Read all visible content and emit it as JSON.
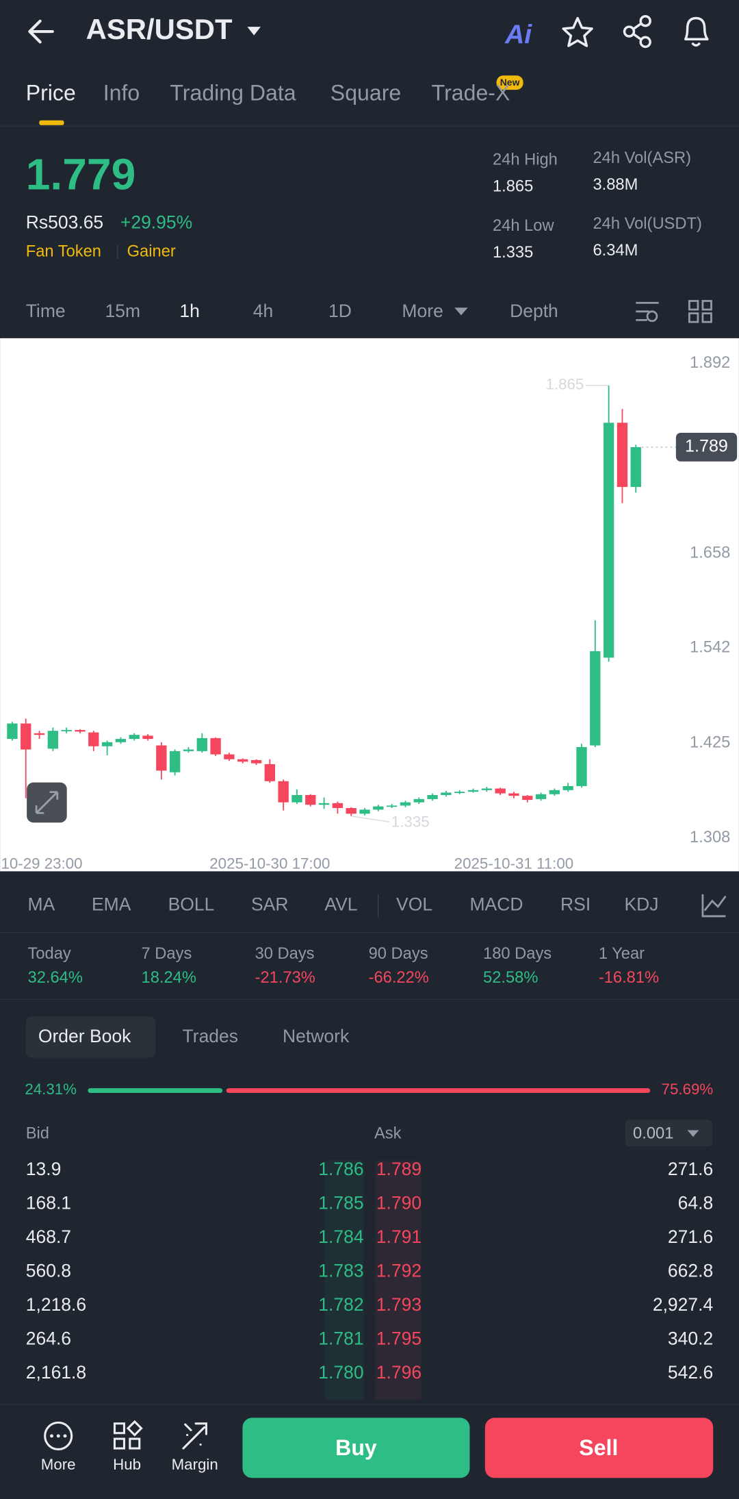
{
  "header": {
    "pair": "ASR/USDT",
    "ai_label": "Ai"
  },
  "tabs": [
    "Price",
    "Info",
    "Trading Data",
    "Square",
    "Trade-X"
  ],
  "new_badge": "New",
  "ticker": {
    "price": "1.779",
    "fiat": "Rs503.65",
    "change": "+29.95%",
    "tags": [
      "Fan Token",
      "Gainer"
    ],
    "stats": [
      {
        "label": "24h High",
        "value": "1.865"
      },
      {
        "label": "24h Vol(ASR)",
        "value": "3.88M"
      },
      {
        "label": "24h Low",
        "value": "1.335"
      },
      {
        "label": "24h Vol(USDT)",
        "value": "6.34M"
      }
    ]
  },
  "intervals": [
    "Time",
    "15m",
    "1h",
    "4h",
    "1D",
    "More",
    "Depth"
  ],
  "chart_data": {
    "type": "candlestick",
    "categories": [
      null,
      "10-29 23:00",
      null,
      null,
      null,
      null,
      null,
      null,
      null,
      null,
      null,
      null,
      null,
      null,
      null,
      null,
      null,
      null,
      null,
      "2025-10-30 17:00",
      null,
      null,
      null,
      null,
      null,
      null,
      null,
      null,
      null,
      null,
      null,
      null,
      null,
      null,
      null,
      null,
      null,
      "2025-10-31 11:00",
      null,
      null,
      null,
      null,
      null,
      null,
      null,
      null,
      null
    ],
    "open": [
      1.43,
      1.449,
      1.437,
      1.418,
      1.44,
      1.441,
      1.438,
      1.421,
      1.426,
      1.43,
      1.434,
      1.422,
      1.389,
      1.415,
      1.415,
      1.431,
      1.411,
      1.405,
      1.404,
      1.399,
      1.378,
      1.352,
      1.361,
      1.349,
      1.351,
      1.345,
      1.338,
      1.343,
      1.347,
      1.348,
      1.352,
      1.356,
      1.361,
      1.364,
      1.365,
      1.367,
      1.369,
      1.363,
      1.36,
      1.356,
      1.362,
      1.367,
      1.372,
      1.422,
      1.53,
      1.819,
      1.74
    ],
    "high": [
      1.451,
      1.455,
      1.44,
      1.444,
      1.444,
      1.442,
      1.44,
      1.428,
      1.432,
      1.437,
      1.436,
      1.426,
      1.417,
      1.42,
      1.437,
      1.432,
      1.413,
      1.406,
      1.405,
      1.405,
      1.38,
      1.368,
      1.362,
      1.358,
      1.353,
      1.346,
      1.345,
      1.349,
      1.35,
      1.354,
      1.358,
      1.363,
      1.366,
      1.367,
      1.369,
      1.371,
      1.37,
      1.365,
      1.361,
      1.364,
      1.369,
      1.376,
      1.424,
      1.576,
      1.865,
      1.836,
      1.792
    ],
    "low": [
      1.428,
      1.357,
      1.43,
      1.415,
      1.437,
      1.437,
      1.415,
      1.41,
      1.424,
      1.428,
      1.428,
      1.38,
      1.385,
      1.413,
      1.413,
      1.409,
      1.403,
      1.4,
      1.398,
      1.376,
      1.342,
      1.35,
      1.347,
      1.344,
      1.338,
      1.335,
      1.336,
      1.341,
      1.345,
      1.346,
      1.35,
      1.354,
      1.359,
      1.362,
      1.364,
      1.365,
      1.361,
      1.357,
      1.352,
      1.354,
      1.36,
      1.365,
      1.37,
      1.42,
      1.525,
      1.72,
      1.733
    ],
    "close": [
      1.449,
      1.417,
      1.435,
      1.44,
      1.441,
      1.439,
      1.421,
      1.426,
      1.43,
      1.435,
      1.43,
      1.391,
      1.415,
      1.417,
      1.431,
      1.411,
      1.405,
      1.402,
      1.4,
      1.378,
      1.352,
      1.361,
      1.349,
      1.351,
      1.345,
      1.338,
      1.343,
      1.347,
      1.348,
      1.352,
      1.356,
      1.361,
      1.364,
      1.365,
      1.367,
      1.369,
      1.363,
      1.36,
      1.355,
      1.362,
      1.367,
      1.372,
      1.42,
      1.538,
      1.819,
      1.74,
      1.789
    ],
    "up_color": "#2ebd85",
    "down_color": "#f6465d",
    "ylim": [
      1.293,
      1.923
    ],
    "yticks": [
      1.308,
      1.425,
      1.542,
      1.658,
      1.892
    ],
    "last_price": 1.789,
    "high_marker": 1.865,
    "low_marker": 1.335
  },
  "indicators": [
    "MA",
    "EMA",
    "BOLL",
    "SAR",
    "AVL",
    "VOL",
    "MACD",
    "RSI",
    "KDJ"
  ],
  "performance": [
    {
      "label": "Today",
      "value": "32.64%"
    },
    {
      "label": "7 Days",
      "value": "18.24%"
    },
    {
      "label": "30 Days",
      "value": "-21.73%"
    },
    {
      "label": "90 Days",
      "value": "-66.22%"
    },
    {
      "label": "180 Days",
      "value": "52.58%"
    },
    {
      "label": "1 Year",
      "value": "-16.81%"
    }
  ],
  "order_book": {
    "tabs": [
      "Order Book",
      "Trades",
      "Network"
    ],
    "bid_ratio": "24.31%",
    "ask_ratio": "75.69%",
    "bid_label": "Bid",
    "ask_label": "Ask",
    "precision": "0.001",
    "rows": [
      [
        "13.9",
        "1.786",
        "1.789",
        "271.6"
      ],
      [
        "168.1",
        "1.785",
        "1.790",
        "64.8"
      ],
      [
        "468.7",
        "1.784",
        "1.791",
        "271.6"
      ],
      [
        "560.8",
        "1.783",
        "1.792",
        "662.8"
      ],
      [
        "1,218.6",
        "1.782",
        "1.793",
        "2,927.4"
      ],
      [
        "264.6",
        "1.781",
        "1.795",
        "340.2"
      ],
      [
        "2,161.8",
        "1.780",
        "1.796",
        "542.6"
      ]
    ]
  },
  "bottom_bar": {
    "items": [
      "More",
      "Hub",
      "Margin"
    ],
    "buy": "Buy",
    "sell": "Sell"
  }
}
